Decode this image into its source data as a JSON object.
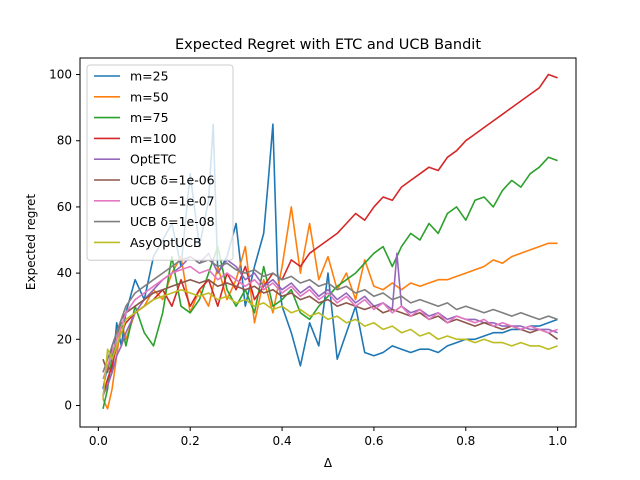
{
  "chart_data": {
    "type": "line",
    "title": "Expected Regret with ETC and UCB Bandit",
    "xlabel": "Δ",
    "ylabel": "Expected regret",
    "xlim": [
      -0.04,
      1.04
    ],
    "ylim": [
      -6.5,
      105
    ],
    "xticks": [
      0,
      0.2,
      0.4,
      0.6,
      0.8,
      1.0
    ],
    "xtick_labels": [
      "0.0",
      "0.2",
      "0.4",
      "0.6",
      "0.8",
      "1.0"
    ],
    "yticks": [
      0,
      20,
      40,
      60,
      80,
      100
    ],
    "ytick_labels": [
      "0",
      "20",
      "40",
      "60",
      "80",
      "100"
    ],
    "grid": false,
    "legend_position": "top-left",
    "series": [
      {
        "name": "m=25",
        "color": "#1f77b4",
        "x": [
          0.01,
          0.02,
          0.03,
          0.04,
          0.05,
          0.06,
          0.08,
          0.1,
          0.12,
          0.14,
          0.16,
          0.18,
          0.2,
          0.22,
          0.24,
          0.25,
          0.26,
          0.28,
          0.3,
          0.32,
          0.34,
          0.36,
          0.37,
          0.38,
          0.39,
          0.4,
          0.42,
          0.44,
          0.46,
          0.48,
          0.5,
          0.52,
          0.54,
          0.56,
          0.58,
          0.6,
          0.62,
          0.64,
          0.66,
          0.68,
          0.7,
          0.72,
          0.74,
          0.76,
          0.78,
          0.8,
          0.82,
          0.84,
          0.86,
          0.88,
          0.9,
          0.92,
          0.94,
          0.96,
          0.98,
          1.0
        ],
        "y": [
          5,
          12,
          10,
          25,
          18,
          28,
          38,
          32,
          45,
          50,
          55,
          42,
          70,
          48,
          62,
          85,
          40,
          45,
          55,
          30,
          42,
          52,
          68,
          85,
          40,
          30,
          22,
          12,
          25,
          18,
          40,
          14,
          22,
          30,
          16,
          15,
          16,
          18,
          17,
          16,
          17,
          17,
          16,
          18,
          19,
          20,
          20,
          21,
          22,
          22,
          23,
          23,
          24,
          24,
          25,
          26
        ]
      },
      {
        "name": "m=50",
        "color": "#ff7f0e",
        "x": [
          0.01,
          0.02,
          0.03,
          0.04,
          0.05,
          0.06,
          0.08,
          0.1,
          0.12,
          0.14,
          0.16,
          0.18,
          0.2,
          0.22,
          0.24,
          0.26,
          0.28,
          0.3,
          0.32,
          0.34,
          0.36,
          0.38,
          0.4,
          0.42,
          0.44,
          0.46,
          0.48,
          0.5,
          0.52,
          0.54,
          0.56,
          0.58,
          0.6,
          0.62,
          0.64,
          0.66,
          0.68,
          0.7,
          0.72,
          0.74,
          0.76,
          0.78,
          0.8,
          0.82,
          0.84,
          0.86,
          0.88,
          0.9,
          0.92,
          0.94,
          0.96,
          0.98,
          1.0
        ],
        "y": [
          2,
          -1,
          5,
          15,
          25,
          20,
          28,
          30,
          35,
          32,
          40,
          45,
          28,
          35,
          30,
          42,
          32,
          38,
          48,
          25,
          38,
          28,
          42,
          60,
          40,
          55,
          38,
          45,
          35,
          40,
          32,
          44,
          36,
          35,
          37,
          35,
          37,
          36,
          37,
          38,
          38,
          39,
          40,
          41,
          42,
          44,
          43,
          45,
          46,
          47,
          48,
          49,
          49
        ]
      },
      {
        "name": "m=75",
        "color": "#2ca02c",
        "x": [
          0.01,
          0.02,
          0.03,
          0.04,
          0.05,
          0.06,
          0.08,
          0.1,
          0.12,
          0.14,
          0.16,
          0.18,
          0.2,
          0.22,
          0.24,
          0.26,
          0.28,
          0.3,
          0.32,
          0.34,
          0.36,
          0.38,
          0.4,
          0.42,
          0.44,
          0.46,
          0.48,
          0.5,
          0.52,
          0.54,
          0.56,
          0.58,
          0.6,
          0.62,
          0.64,
          0.66,
          0.68,
          0.7,
          0.72,
          0.74,
          0.76,
          0.78,
          0.8,
          0.82,
          0.84,
          0.86,
          0.88,
          0.9,
          0.92,
          0.94,
          0.96,
          0.98,
          1.0
        ],
        "y": [
          -1,
          5,
          15,
          20,
          25,
          18,
          30,
          22,
          18,
          28,
          45,
          30,
          28,
          32,
          40,
          48,
          35,
          30,
          35,
          28,
          42,
          30,
          32,
          35,
          28,
          26,
          30,
          33,
          36,
          38,
          40,
          43,
          46,
          48,
          42,
          48,
          52,
          50,
          55,
          52,
          58,
          60,
          56,
          62,
          63,
          60,
          65,
          68,
          66,
          70,
          72,
          75,
          74
        ]
      },
      {
        "name": "m=100",
        "color": "#d62728",
        "x": [
          0.01,
          0.02,
          0.03,
          0.04,
          0.05,
          0.06,
          0.08,
          0.1,
          0.12,
          0.14,
          0.16,
          0.18,
          0.2,
          0.22,
          0.24,
          0.26,
          0.28,
          0.3,
          0.32,
          0.34,
          0.36,
          0.38,
          0.4,
          0.42,
          0.44,
          0.46,
          0.48,
          0.5,
          0.52,
          0.54,
          0.56,
          0.58,
          0.6,
          0.62,
          0.64,
          0.66,
          0.68,
          0.7,
          0.72,
          0.74,
          0.76,
          0.78,
          0.8,
          0.82,
          0.84,
          0.86,
          0.88,
          0.9,
          0.92,
          0.94,
          0.96,
          0.98,
          1.0
        ],
        "y": [
          3,
          8,
          12,
          18,
          22,
          25,
          28,
          30,
          32,
          35,
          30,
          38,
          30,
          35,
          38,
          30,
          40,
          35,
          42,
          32,
          36,
          40,
          38,
          44,
          42,
          46,
          48,
          50,
          52,
          55,
          58,
          56,
          60,
          63,
          62,
          66,
          68,
          70,
          72,
          71,
          75,
          77,
          80,
          82,
          84,
          86,
          88,
          90,
          92,
          94,
          96,
          100,
          99
        ]
      },
      {
        "name": "OptETC",
        "color": "#9467bd",
        "x": [
          0.01,
          0.02,
          0.03,
          0.04,
          0.05,
          0.06,
          0.08,
          0.1,
          0.12,
          0.14,
          0.16,
          0.18,
          0.2,
          0.22,
          0.24,
          0.26,
          0.28,
          0.3,
          0.32,
          0.34,
          0.36,
          0.38,
          0.4,
          0.42,
          0.44,
          0.46,
          0.48,
          0.5,
          0.52,
          0.54,
          0.56,
          0.58,
          0.6,
          0.62,
          0.64,
          0.65,
          0.66,
          0.68,
          0.7,
          0.72,
          0.74,
          0.76,
          0.78,
          0.8,
          0.82,
          0.84,
          0.86,
          0.88,
          0.9,
          0.92,
          0.94,
          0.96,
          0.98,
          1.0
        ],
        "y": [
          3,
          6,
          10,
          15,
          18,
          22,
          28,
          32,
          35,
          38,
          40,
          42,
          45,
          43,
          46,
          40,
          44,
          42,
          38,
          40,
          36,
          38,
          35,
          37,
          34,
          36,
          33,
          35,
          32,
          34,
          31,
          33,
          30,
          31,
          29,
          46,
          30,
          28,
          29,
          27,
          28,
          26,
          27,
          26,
          26,
          25,
          25,
          24,
          24,
          24,
          23,
          23,
          23,
          22
        ]
      },
      {
        "name": "UCB δ=1e-06",
        "color": "#8c564b",
        "x": [
          0.01,
          0.02,
          0.03,
          0.04,
          0.05,
          0.06,
          0.08,
          0.1,
          0.12,
          0.14,
          0.16,
          0.18,
          0.2,
          0.22,
          0.24,
          0.26,
          0.28,
          0.3,
          0.32,
          0.34,
          0.36,
          0.38,
          0.4,
          0.42,
          0.44,
          0.46,
          0.48,
          0.5,
          0.52,
          0.54,
          0.56,
          0.58,
          0.6,
          0.62,
          0.64,
          0.66,
          0.68,
          0.7,
          0.72,
          0.74,
          0.76,
          0.78,
          0.8,
          0.82,
          0.84,
          0.86,
          0.88,
          0.9,
          0.92,
          0.94,
          0.96,
          0.98,
          1.0
        ],
        "y": [
          14,
          10,
          18,
          22,
          26,
          28,
          30,
          32,
          34,
          35,
          36,
          37,
          38,
          37,
          38,
          36,
          37,
          36,
          35,
          36,
          34,
          35,
          33,
          34,
          32,
          33,
          31,
          32,
          30,
          31,
          30,
          29,
          30,
          28,
          29,
          28,
          27,
          28,
          26,
          27,
          25,
          26,
          25,
          24,
          25,
          24,
          23,
          24,
          23,
          22,
          23,
          22,
          20
        ]
      },
      {
        "name": "UCB δ=1e-07",
        "color": "#e377c2",
        "x": [
          0.01,
          0.02,
          0.03,
          0.04,
          0.05,
          0.06,
          0.08,
          0.1,
          0.12,
          0.14,
          0.16,
          0.18,
          0.2,
          0.22,
          0.24,
          0.26,
          0.28,
          0.3,
          0.32,
          0.34,
          0.36,
          0.38,
          0.4,
          0.42,
          0.44,
          0.46,
          0.48,
          0.5,
          0.52,
          0.54,
          0.56,
          0.58,
          0.6,
          0.62,
          0.64,
          0.66,
          0.68,
          0.7,
          0.72,
          0.74,
          0.76,
          0.78,
          0.8,
          0.82,
          0.84,
          0.86,
          0.88,
          0.9,
          0.92,
          0.94,
          0.96,
          0.98,
          1.0
        ],
        "y": [
          8,
          12,
          16,
          20,
          24,
          28,
          32,
          34,
          36,
          38,
          40,
          41,
          42,
          40,
          41,
          38,
          40,
          38,
          36,
          38,
          35,
          37,
          34,
          36,
          33,
          35,
          32,
          34,
          31,
          33,
          30,
          32,
          29,
          31,
          28,
          30,
          27,
          29,
          26,
          28,
          25,
          27,
          26,
          25,
          26,
          24,
          25,
          24,
          23,
          24,
          23,
          22,
          23
        ]
      },
      {
        "name": "UCB δ=1e-08",
        "color": "#7f7f7f",
        "x": [
          0.01,
          0.02,
          0.03,
          0.04,
          0.05,
          0.06,
          0.08,
          0.1,
          0.12,
          0.14,
          0.16,
          0.18,
          0.2,
          0.22,
          0.24,
          0.26,
          0.28,
          0.3,
          0.32,
          0.34,
          0.36,
          0.38,
          0.4,
          0.42,
          0.44,
          0.46,
          0.48,
          0.5,
          0.52,
          0.54,
          0.56,
          0.58,
          0.6,
          0.62,
          0.64,
          0.66,
          0.68,
          0.7,
          0.72,
          0.74,
          0.76,
          0.78,
          0.8,
          0.82,
          0.84,
          0.86,
          0.88,
          0.9,
          0.92,
          0.94,
          0.96,
          0.98,
          1.0
        ],
        "y": [
          10,
          14,
          18,
          22,
          26,
          30,
          34,
          36,
          38,
          40,
          42,
          44,
          45,
          43,
          44,
          42,
          43,
          41,
          40,
          41,
          39,
          40,
          38,
          39,
          37,
          38,
          36,
          37,
          35,
          36,
          34,
          35,
          33,
          34,
          32,
          33,
          31,
          32,
          31,
          30,
          31,
          29,
          30,
          29,
          28,
          29,
          28,
          27,
          28,
          27,
          26,
          27,
          26
        ]
      },
      {
        "name": "AsyOptUCB",
        "color": "#bcbd22",
        "x": [
          0.01,
          0.02,
          0.03,
          0.04,
          0.05,
          0.06,
          0.08,
          0.1,
          0.12,
          0.14,
          0.16,
          0.18,
          0.2,
          0.22,
          0.24,
          0.26,
          0.28,
          0.3,
          0.32,
          0.34,
          0.36,
          0.38,
          0.4,
          0.42,
          0.44,
          0.46,
          0.48,
          0.5,
          0.52,
          0.54,
          0.56,
          0.58,
          0.6,
          0.62,
          0.64,
          0.66,
          0.68,
          0.7,
          0.72,
          0.74,
          0.76,
          0.78,
          0.8,
          0.82,
          0.84,
          0.86,
          0.88,
          0.9,
          0.92,
          0.94,
          0.96,
          0.98,
          1.0
        ],
        "y": [
          2,
          17,
          14,
          18,
          22,
          26,
          28,
          30,
          32,
          33,
          34,
          35,
          34,
          33,
          34,
          32,
          33,
          31,
          32,
          30,
          31,
          29,
          30,
          28,
          29,
          27,
          28,
          26,
          27,
          25,
          26,
          24,
          25,
          23,
          24,
          22,
          23,
          21,
          22,
          20,
          21,
          20,
          20,
          19,
          20,
          19,
          19,
          18,
          19,
          18,
          18,
          17,
          18
        ]
      }
    ]
  }
}
